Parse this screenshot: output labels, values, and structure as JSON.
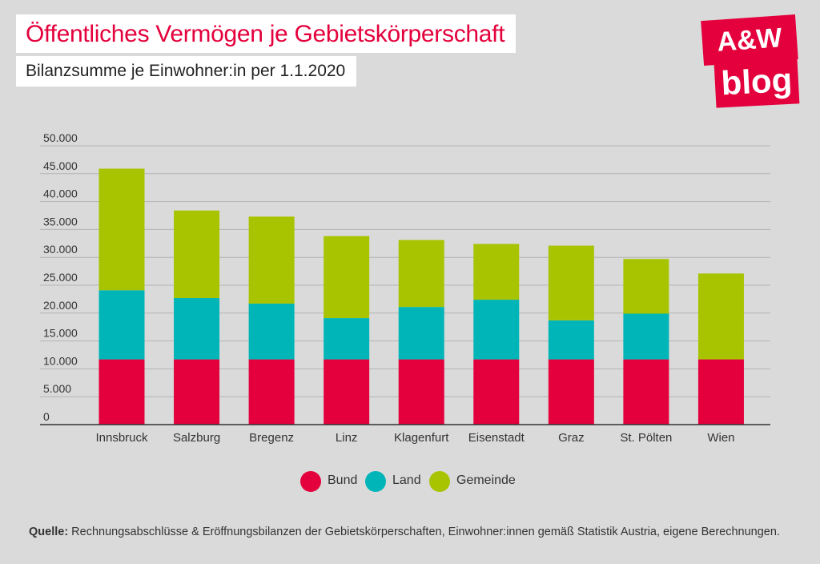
{
  "header": {
    "title": "Öffentliches Vermögen je Gebietskörperschaft",
    "subtitle": "Bilanzsumme je Einwohner:in per 1.1.2020"
  },
  "logo": {
    "line1": "A&W",
    "line2": "blog",
    "color": "#e4003c"
  },
  "chart_data": {
    "type": "bar",
    "stacked": true,
    "title": "Öffentliches Vermögen je Gebietskörperschaft",
    "subtitle": "Bilanzsumme je Einwohner:in per 1.1.2020",
    "categories": [
      "Innsbruck",
      "Salzburg",
      "Bregenz",
      "Linz",
      "Klagenfurt",
      "Eisenstadt",
      "Graz",
      "St. Pölten",
      "Wien"
    ],
    "series": [
      {
        "name": "Bund",
        "color": "#e4003c",
        "values": [
          11700,
          11700,
          11700,
          11700,
          11700,
          11700,
          11700,
          11700,
          11700
        ]
      },
      {
        "name": "Land",
        "color": "#00b5b8",
        "values": [
          12400,
          11000,
          10000,
          7400,
          9400,
          10700,
          7000,
          8200,
          0
        ]
      },
      {
        "name": "Gemeinde",
        "color": "#a8c400",
        "values": [
          21800,
          15700,
          15600,
          14700,
          12000,
          10000,
          13400,
          9800,
          15400
        ]
      }
    ],
    "ylim": [
      0,
      50000
    ],
    "yticks": [
      0,
      5000,
      10000,
      15000,
      20000,
      25000,
      30000,
      35000,
      40000,
      45000,
      50000
    ],
    "ytick_labels": [
      "0",
      "5.000",
      "10.000",
      "15.000",
      "20.000",
      "25.000",
      "30.000",
      "35.000",
      "40.000",
      "45.000",
      "50.000"
    ],
    "grid": true,
    "legend_position": "bottom"
  },
  "source": {
    "label": "Quelle:",
    "text": " Rechnungsabschlüsse & Eröffnungsbilanzen der Gebietskörperschaften, Einwohner:innen gemäß Statistik Austria, eigene Berechnungen."
  }
}
